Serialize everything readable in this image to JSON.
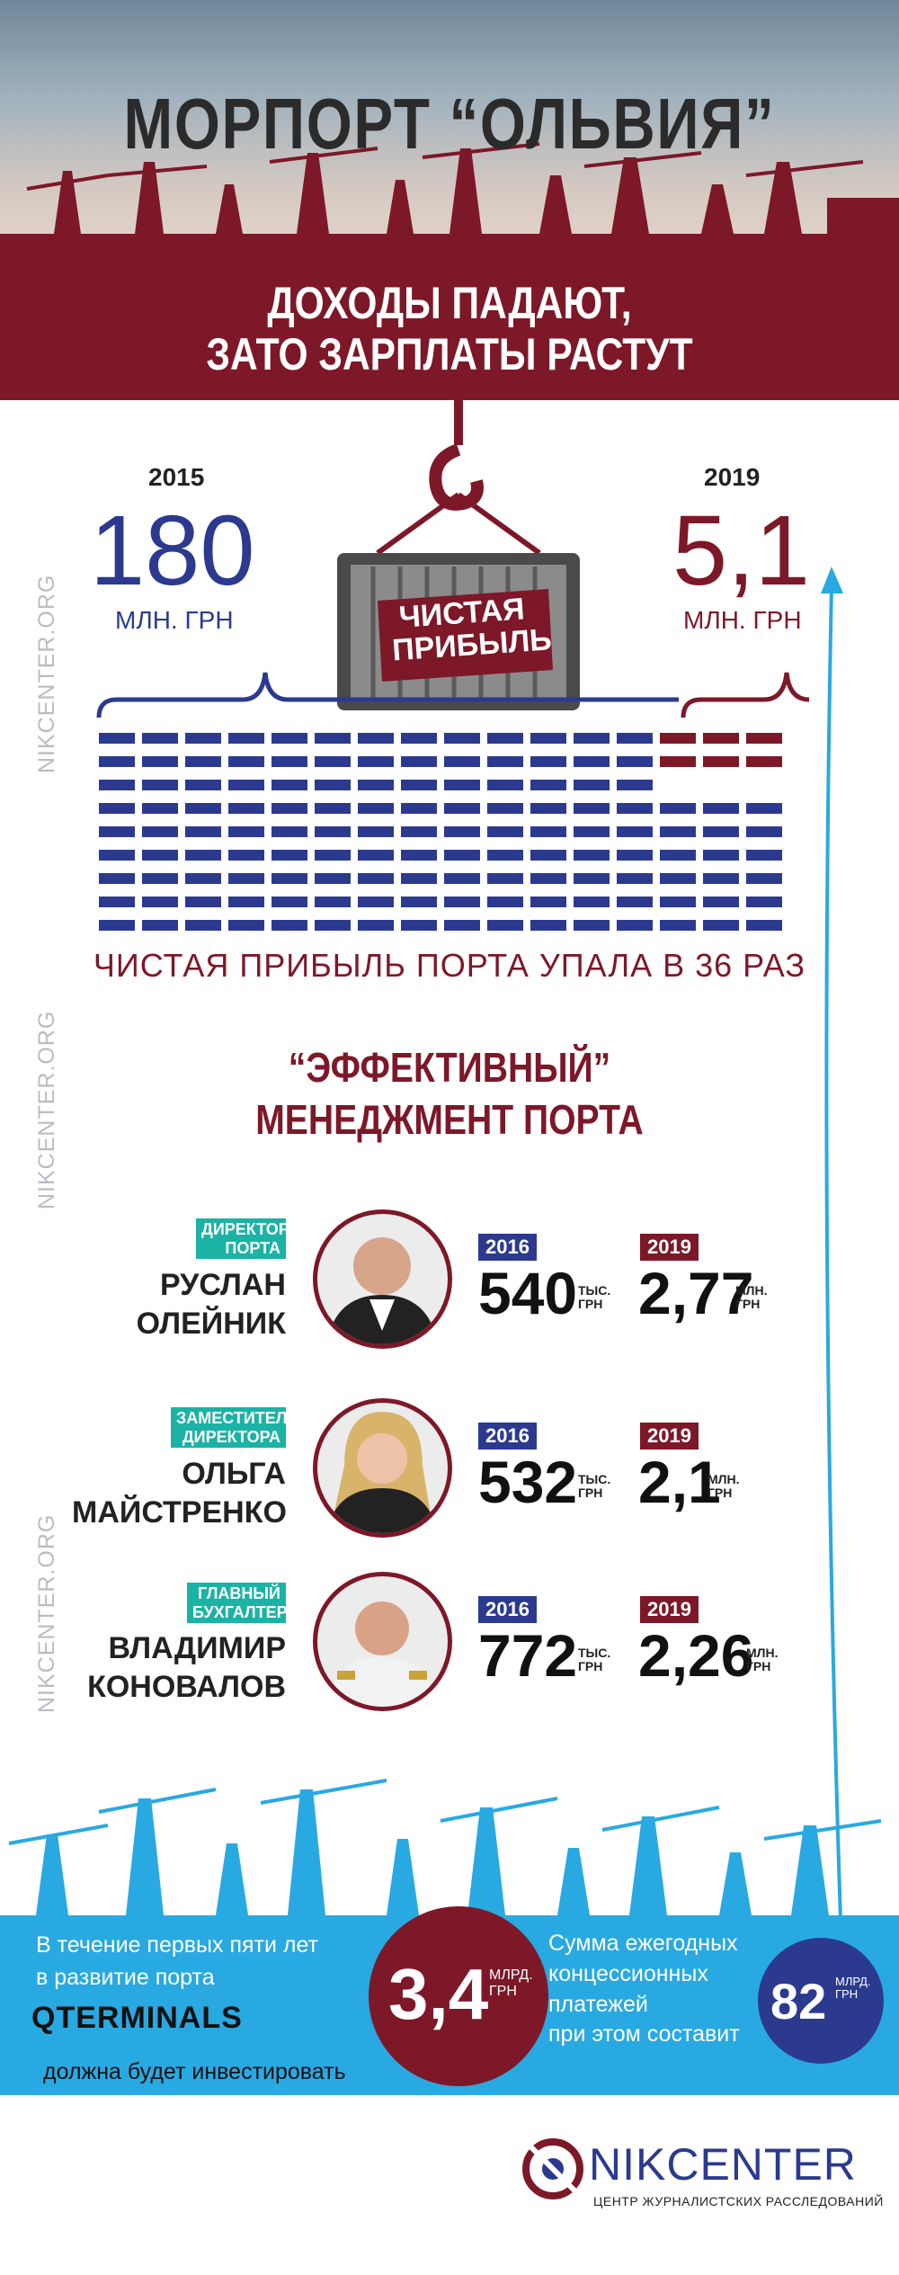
{
  "header": {
    "title": "МОРПОРТ “ОЛЬВИЯ”",
    "subtitle_line1": "ДОХОДЫ ПАДАЮТ,",
    "subtitle_line2": "ЗАТО ЗАРПЛАТЫ РАСТУТ"
  },
  "profit": {
    "year_left": "2015",
    "value_left": "180",
    "unit_left": "МЛН. ГРН",
    "year_right": "2019",
    "value_right": "5,1",
    "unit_right": "МЛН. ГРН",
    "sign_line1": "ЧИСТАЯ",
    "sign_line2": "ПРИБЫЛЬ",
    "caption": "ЧИСТАЯ ПРИБЫЛЬ ПОРТА УПАЛА В 36 РАЗ"
  },
  "side_watermark": "NIKCENTER.ORG",
  "management": {
    "title_line1": "“ЭФФЕКТИВНЫЙ”",
    "title_line2": "МЕНЕДЖМЕНТ ПОРТА",
    "people": [
      {
        "role_line1": "ДИРЕКТОР",
        "role_line2": "ПОРТА",
        "name_line1": "РУСЛАН",
        "name_line2": "ОЛЕЙНИК",
        "year1": "2016",
        "salary1": "540",
        "unit1_line1": "ТЫС.",
        "unit1_line2": "ГРН",
        "year2": "2019",
        "salary2": "2,77",
        "unit2_line1": "МЛН.",
        "unit2_line2": "ГРН"
      },
      {
        "role_line1": "ЗАМЕСТИТЕЛЬ",
        "role_line2": "ДИРЕКТОРА",
        "name_line1": "ОЛЬГА",
        "name_line2": "МАЙСТРЕНКО",
        "year1": "2016",
        "salary1": "532",
        "unit1_line1": "ТЫС.",
        "unit1_line2": "ГРН",
        "year2": "2019",
        "salary2": "2,1",
        "unit2_line1": "МЛН.",
        "unit2_line2": "ГРН"
      },
      {
        "role_line1": "ГЛАВНЫЙ",
        "role_line2": "БУХГАЛТЕР",
        "name_line1": "ВЛАДИМИР",
        "name_line2": "КОНОВАЛОВ",
        "year1": "2016",
        "salary1": "772",
        "unit1_line1": "ТЫС.",
        "unit1_line2": "ГРН",
        "year2": "2019",
        "salary2": "2,26",
        "unit2_line1": "МЛН.",
        "unit2_line2": "ГРН"
      }
    ]
  },
  "footer": {
    "invest_line1": "В течение первых пяти лет",
    "invest_line2": "в развитие порта",
    "company": "QTERMINALS",
    "invest_line3": "должна будет инвестировать",
    "invest_value": "3,4",
    "invest_unit_line1": "МЛРД.",
    "invest_unit_line2": "ГРН",
    "conc_line1": "Сумма ежегодных",
    "conc_line2": "концессионных",
    "conc_line3": "платежей",
    "conc_line4": "при этом составит",
    "conc_value": "82",
    "conc_unit_line1": "МЛРД.",
    "conc_unit_line2": "ГРН"
  },
  "brand": {
    "name": "NIKCENTER",
    "tagline": "ЦЕНТР ЖУРНАЛИСТСКИХ РАССЛЕДОВАНИЙ"
  },
  "colors": {
    "maroon": "#7d1828",
    "navy": "#2b3a8f",
    "teal": "#1ab3a5",
    "sky": "#29a9e1"
  }
}
